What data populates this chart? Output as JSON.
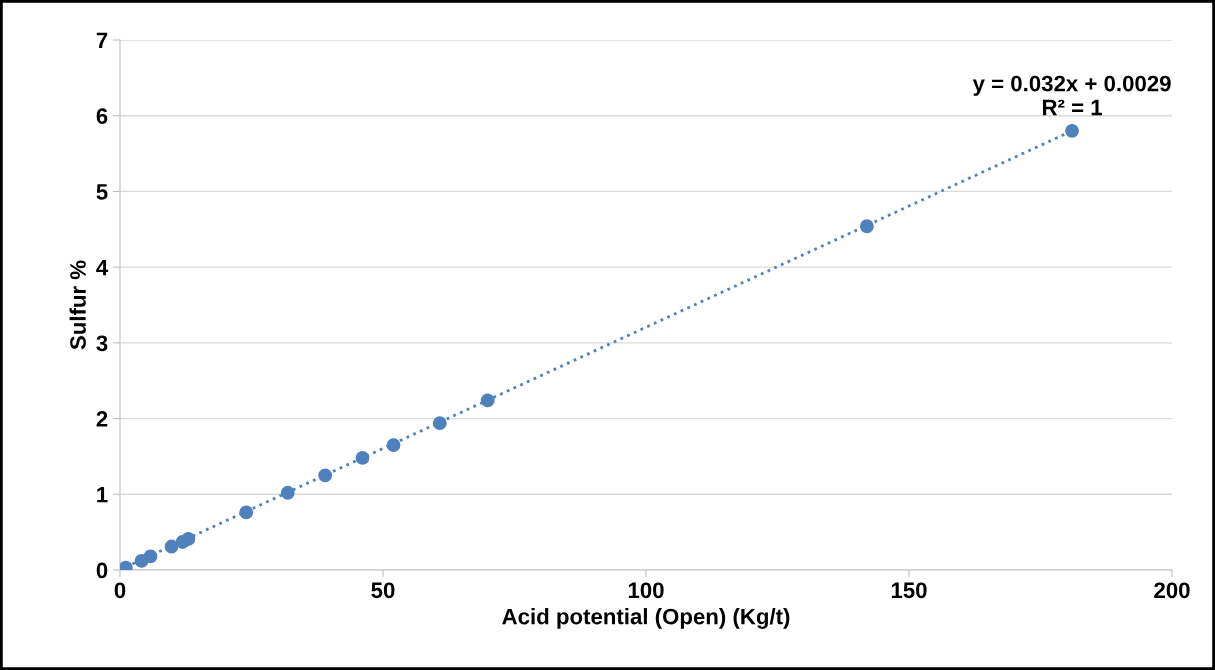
{
  "chart_data": {
    "type": "scatter",
    "xlabel": "Acid potential (Open) (Kg/t)",
    "ylabel": "Sulfur %",
    "series": [
      {
        "color": "#4f81bd",
        "x": [
          1.1,
          4.1,
          5.8,
          9.8,
          11.9,
          13,
          24,
          31.9,
          39,
          46.1,
          52,
          60.8,
          69.9,
          142,
          181
        ],
        "values": [
          0.03,
          0.12,
          0.18,
          0.31,
          0.37,
          0.41,
          0.76,
          1.02,
          1.25,
          1.48,
          1.65,
          1.94,
          2.24,
          4.54,
          5.8
        ],
        "marker": "circle"
      },
      {
        "type": "line",
        "color": "#4f81bd",
        "x": [
          1.1,
          181
        ],
        "values": [
          0.04,
          5.8
        ],
        "line_style": "dotted",
        "marker": "none"
      }
    ],
    "annotations": [
      {
        "text": "y = 0.032x + 0.0029\nR² = 1",
        "x": 181,
        "y": 5.8
      }
    ],
    "xlim": [
      0,
      200
    ],
    "xticks": [
      0,
      50,
      100,
      150,
      200
    ],
    "ylim": [
      0,
      7
    ],
    "yticks": [
      0,
      1,
      2,
      3,
      4,
      5,
      6,
      7
    ],
    "grid": "y",
    "legend": false
  }
}
